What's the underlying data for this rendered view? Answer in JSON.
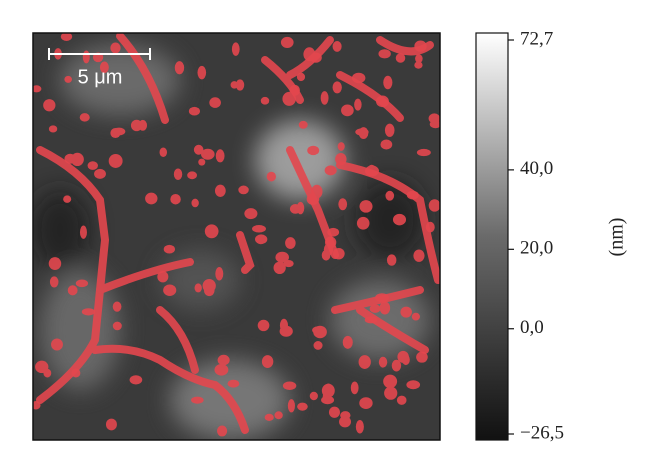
{
  "scale_bar": {
    "label": "5 μm"
  },
  "colorbar": {
    "label": "(nm)",
    "lim": [
      -26.5,
      72.7
    ],
    "ticks": [
      {
        "value": 72.7,
        "label": "72,7"
      },
      {
        "value": 40,
        "label": "40,0"
      },
      {
        "value": 20,
        "label": "20,0"
      },
      {
        "value": 0,
        "label": "0,0"
      },
      {
        "value": -26.5,
        "label": "−26,5"
      }
    ]
  }
}
